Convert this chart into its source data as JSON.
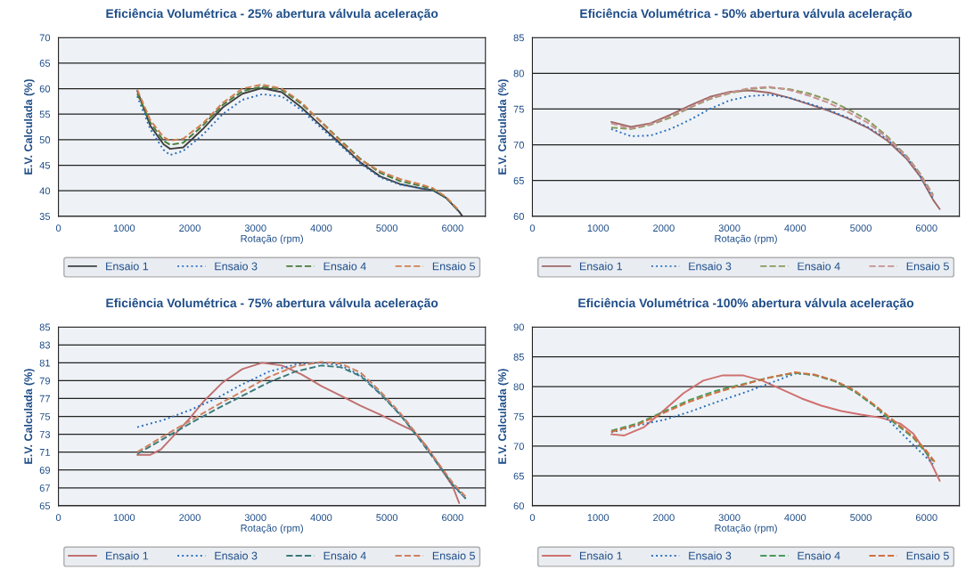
{
  "chart_data": [
    {
      "type": "line",
      "title": "Eficiência Volumétrica - 25% abertura válvula aceleração",
      "xlabel": "Rotação (rpm)",
      "ylabel": "E.V. Calculada (%)",
      "xlim": [
        0,
        6500
      ],
      "xticks": [
        0,
        1000,
        2000,
        3000,
        4000,
        5000,
        6000
      ],
      "ylim": [
        35,
        70
      ],
      "yticks": [
        35,
        40,
        45,
        50,
        55,
        60,
        65,
        70
      ],
      "grid": "y",
      "legend": "bottom",
      "series": [
        {
          "name": "Ensaio 1",
          "color": "#404040",
          "line_style": "solid",
          "x": [
            1200,
            1400,
            1600,
            1700,
            1900,
            2200,
            2500,
            2800,
            3100,
            3400,
            3700,
            4000,
            4300,
            4600,
            4900,
            5200,
            5500,
            5700,
            5900,
            6100,
            6150
          ],
          "values": [
            59.6,
            52.7,
            49.1,
            48.2,
            48.5,
            52.1,
            56.3,
            59.0,
            60.1,
            59.3,
            56.3,
            52.7,
            49.1,
            45.5,
            42.8,
            41.3,
            40.5,
            40.1,
            38.6,
            35.9,
            35.0
          ]
        },
        {
          "name": "Ensaio 3",
          "color": "#2a6ebb",
          "line_style": "dotted",
          "x": [
            1200,
            1400,
            1600,
            1700,
            1900,
            2200,
            2500,
            2800,
            3100,
            3400,
            3700,
            4000,
            4300,
            4600,
            4900,
            5200,
            5500,
            5700,
            5900,
            6100
          ],
          "values": [
            58.5,
            52.0,
            48.0,
            47.0,
            47.8,
            51.0,
            55.0,
            57.8,
            58.9,
            58.5,
            55.8,
            52.3,
            48.8,
            45.3,
            42.6,
            41.2,
            40.5,
            40.1,
            38.6,
            35.9
          ]
        },
        {
          "name": "Ensaio 4",
          "color": "#4a7a3a",
          "line_style": "dashed",
          "x": [
            1200,
            1400,
            1600,
            1700,
            1900,
            2200,
            2500,
            2800,
            3100,
            3400,
            3700,
            4000,
            4300,
            4600,
            4900,
            5200,
            5500,
            5700,
            5900,
            6100
          ],
          "values": [
            59.0,
            53.3,
            49.8,
            49.0,
            49.4,
            52.8,
            56.8,
            59.5,
            60.4,
            59.8,
            57.0,
            53.5,
            49.8,
            46.2,
            43.5,
            41.9,
            41.0,
            40.3,
            38.7,
            36.0
          ]
        },
        {
          "name": "Ensaio 5",
          "color": "#d08050",
          "line_style": "dashed",
          "x": [
            1200,
            1400,
            1600,
            1700,
            1900,
            2200,
            2500,
            2800,
            3100,
            3400,
            3700,
            4000,
            4300,
            4600,
            4900,
            5200,
            5500,
            5700,
            5900,
            6100
          ],
          "values": [
            59.8,
            53.8,
            50.5,
            49.8,
            50.2,
            53.2,
            57.2,
            60.0,
            60.8,
            60.0,
            57.3,
            53.4,
            49.6,
            46.0,
            43.8,
            42.3,
            41.3,
            40.5,
            38.8,
            36.1
          ]
        }
      ]
    },
    {
      "type": "line",
      "title": "Eficiência Volumétrica - 50% abertura válvula aceleração",
      "xlabel": "Rotação (rpm)",
      "ylabel": "E.V. Calculada (%)",
      "xlim": [
        0,
        6500
      ],
      "xticks": [
        0,
        1000,
        2000,
        3000,
        4000,
        5000,
        6000
      ],
      "ylim": [
        60,
        85
      ],
      "yticks": [
        60,
        65,
        70,
        75,
        80,
        85
      ],
      "grid": "y",
      "legend": "bottom",
      "series": [
        {
          "name": "Ensaio 1",
          "color": "#a06868",
          "line_style": "solid",
          "x": [
            1200,
            1500,
            1800,
            2100,
            2400,
            2700,
            3000,
            3300,
            3600,
            3900,
            4200,
            4500,
            4800,
            5100,
            5400,
            5700,
            5900,
            6100,
            6200
          ],
          "values": [
            73.2,
            72.5,
            73.0,
            74.2,
            75.5,
            76.7,
            77.4,
            77.6,
            77.3,
            76.6,
            75.7,
            74.8,
            73.7,
            72.4,
            70.6,
            68.0,
            65.6,
            62.3,
            61.0
          ]
        },
        {
          "name": "Ensaio 3",
          "color": "#2a6ebb",
          "line_style": "dotted",
          "x": [
            1200,
            1500,
            1800,
            2100,
            2400,
            2700,
            3000,
            3300,
            3600,
            3900,
            4200,
            4500,
            4800,
            5100,
            5400,
            5700,
            5900,
            6100
          ],
          "values": [
            72.2,
            71.2,
            71.3,
            72.2,
            73.5,
            75.0,
            76.2,
            76.8,
            77.0,
            76.6,
            75.8,
            74.9,
            73.8,
            72.5,
            70.8,
            68.2,
            65.8,
            62.5
          ]
        },
        {
          "name": "Ensaio 4",
          "color": "#8a9a5a",
          "line_style": "dashed",
          "x": [
            1200,
            1500,
            1800,
            2100,
            2400,
            2700,
            3000,
            3300,
            3600,
            3900,
            4200,
            4500,
            4800,
            5100,
            5400,
            5700,
            5900,
            6100
          ],
          "values": [
            72.4,
            72.2,
            72.8,
            73.8,
            75.2,
            76.4,
            77.2,
            77.8,
            78.0,
            77.8,
            77.2,
            76.3,
            75.0,
            73.5,
            71.2,
            68.4,
            66.0,
            63.0
          ]
        },
        {
          "name": "Ensaio 5",
          "color": "#c89090",
          "line_style": "dashed",
          "x": [
            1200,
            1500,
            1800,
            2100,
            2400,
            2700,
            3000,
            3300,
            3600,
            3900,
            4200,
            4500,
            4800,
            5100,
            5400,
            5700,
            5900,
            6100
          ],
          "values": [
            73.0,
            72.3,
            72.9,
            74.0,
            75.3,
            76.5,
            77.3,
            77.9,
            78.1,
            77.7,
            76.9,
            75.9,
            74.6,
            73.1,
            71.0,
            68.3,
            65.9,
            62.8
          ]
        }
      ]
    },
    {
      "type": "line",
      "title": "Eficiência Volumétrica - 75% abertura válvula aceleração",
      "xlabel": "Rotação (rpm)",
      "ylabel": "E.V. Calculada (%)",
      "xlim": [
        0,
        6500
      ],
      "xticks": [
        0,
        1000,
        2000,
        3000,
        4000,
        5000,
        6000
      ],
      "ylim": [
        65,
        85
      ],
      "yticks": [
        65,
        67,
        69,
        71,
        73,
        75,
        77,
        79,
        81,
        83,
        85
      ],
      "grid": "y",
      "legend": "bottom",
      "series": [
        {
          "name": "Ensaio 1",
          "color": "#c07070",
          "line_style": "solid",
          "x": [
            1200,
            1400,
            1560,
            1800,
            2000,
            2200,
            2500,
            2800,
            3100,
            3400,
            3700,
            4000,
            4300,
            4600,
            4900,
            5200,
            5400,
            5600,
            5800,
            6000,
            6100
          ],
          "values": [
            70.7,
            70.7,
            71.3,
            73.2,
            74.8,
            76.6,
            78.8,
            80.3,
            81.0,
            80.7,
            79.7,
            78.4,
            77.3,
            76.2,
            75.2,
            74.1,
            73.4,
            71.7,
            69.4,
            67.2,
            65.3
          ]
        },
        {
          "name": "Ensaio 3",
          "color": "#2a6ebb",
          "line_style": "dotted",
          "x": [
            1200,
            1600,
            2000,
            2400,
            2800,
            3200,
            3600,
            4000,
            4300,
            4600,
            4900,
            5200,
            5500,
            5800,
            6000,
            6200
          ],
          "values": [
            73.8,
            74.6,
            75.7,
            77.0,
            78.6,
            80.0,
            80.8,
            81.0,
            80.7,
            79.6,
            77.6,
            75.2,
            72.5,
            69.5,
            67.3,
            65.8
          ]
        },
        {
          "name": "Ensaio 4",
          "color": "#3a7a7a",
          "line_style": "dashed",
          "x": [
            1200,
            1600,
            2000,
            2400,
            2800,
            3200,
            3600,
            4000,
            4300,
            4600,
            4900,
            5200,
            5500,
            5800,
            6000,
            6200
          ],
          "values": [
            70.8,
            72.5,
            74.2,
            75.8,
            77.3,
            78.8,
            80.0,
            80.7,
            80.5,
            79.5,
            77.5,
            75.2,
            72.4,
            69.4,
            67.4,
            65.8
          ]
        },
        {
          "name": "Ensaio 5",
          "color": "#d08060",
          "line_style": "dashed",
          "x": [
            1200,
            1600,
            2000,
            2400,
            2800,
            3200,
            3600,
            4000,
            4300,
            4600,
            4900,
            5200,
            5500,
            5800,
            6000,
            6200
          ],
          "values": [
            71.0,
            72.8,
            74.5,
            76.2,
            77.8,
            79.4,
            80.6,
            81.1,
            80.9,
            79.9,
            77.8,
            75.4,
            72.6,
            69.6,
            67.6,
            66.0
          ]
        }
      ]
    },
    {
      "type": "line",
      "title": "Eficiência Volumétrica -100% abertura válvula aceleração",
      "xlabel": "Rotação (rpm)",
      "ylabel": "E.V. Calculada (%)",
      "xlim": [
        0,
        6500
      ],
      "xticks": [
        0,
        1000,
        2000,
        3000,
        4000,
        5000,
        6000
      ],
      "ylim": [
        60,
        90
      ],
      "yticks": [
        60,
        65,
        70,
        75,
        80,
        85,
        90
      ],
      "grid": "y",
      "legend": "bottom",
      "series": [
        {
          "name": "Ensaio 1",
          "color": "#d07070",
          "line_style": "solid",
          "x": [
            1200,
            1400,
            1700,
            2000,
            2300,
            2600,
            2900,
            3200,
            3500,
            3800,
            4100,
            4400,
            4700,
            5000,
            5300,
            5600,
            5800,
            6000,
            6200
          ],
          "values": [
            72.0,
            71.8,
            73.2,
            76.0,
            78.9,
            81.0,
            81.9,
            81.9,
            81.0,
            79.5,
            78.0,
            76.8,
            75.9,
            75.3,
            74.8,
            73.8,
            72.1,
            68.8,
            64.2
          ]
        },
        {
          "name": "Ensaio 3",
          "color": "#2a6ebb",
          "line_style": "dotted",
          "x": [
            1200,
            1600,
            2000,
            2400,
            2800,
            3200,
            3600,
            4000,
            4300,
            4600,
            4900,
            5200,
            5500,
            5800,
            6100
          ],
          "values": [
            72.3,
            73.5,
            74.4,
            75.8,
            77.4,
            78.9,
            80.5,
            82.2,
            82.0,
            81.0,
            79.3,
            76.8,
            73.5,
            70.2,
            67.0
          ]
        },
        {
          "name": "Ensaio 4",
          "color": "#4a9a5a",
          "line_style": "dashed",
          "x": [
            1200,
            1600,
            2000,
            2400,
            2800,
            3200,
            3600,
            4000,
            4300,
            4600,
            4900,
            5200,
            5500,
            5800,
            6100
          ],
          "values": [
            72.6,
            73.8,
            75.8,
            77.8,
            79.3,
            80.4,
            81.5,
            82.3,
            81.9,
            80.9,
            79.2,
            76.8,
            74.0,
            71.4,
            67.5
          ]
        },
        {
          "name": "Ensaio 5",
          "color": "#d07040",
          "line_style": "dashed",
          "x": [
            1200,
            1600,
            2000,
            2400,
            2800,
            3200,
            3600,
            4000,
            4300,
            4600,
            4900,
            5200,
            5500,
            5800,
            6000,
            6150
          ],
          "values": [
            72.4,
            73.6,
            75.6,
            77.5,
            79.0,
            80.3,
            81.5,
            82.4,
            82.0,
            81.0,
            79.4,
            77.0,
            74.3,
            71.6,
            69.2,
            67.0
          ]
        }
      ]
    }
  ]
}
